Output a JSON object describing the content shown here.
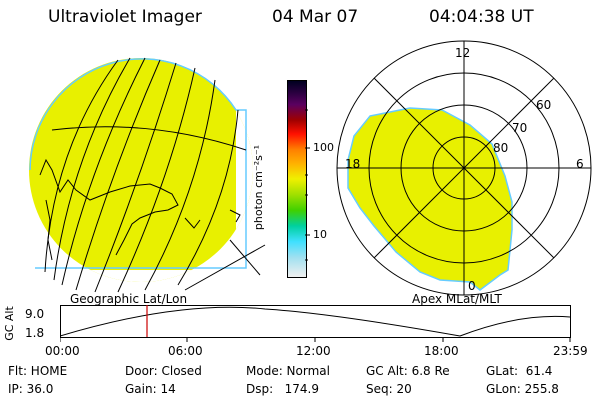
{
  "header": {
    "instrument": "Ultraviolet Imager",
    "date": "04 Mar 07",
    "time": "04:04:38 UT"
  },
  "left_panel": {
    "caption": "Geographic Lat/Lon"
  },
  "right_panel": {
    "caption": "Apex MLat/MLT",
    "mlt_labels": {
      "top": "12",
      "left": "18",
      "right": "6",
      "bottom": "0"
    },
    "lat_rings": [
      "60",
      "70",
      "80"
    ]
  },
  "colorbar": {
    "unit": "photon cm⁻²s⁻¹",
    "ticks": [
      "100",
      "10"
    ]
  },
  "altitude_plot": {
    "ylabel": "GC Alt",
    "ytick_top": "9.0",
    "ytick_bottom": "1.8",
    "xticks": [
      "00:00",
      "06:00",
      "12:00",
      "18:00",
      "23:59"
    ]
  },
  "footer": {
    "row1": [
      "Flt: HOME",
      "Door: Closed",
      "Mode: Normal",
      "GC Alt: 6.8 Re",
      "GLat:  61.4"
    ],
    "row2": [
      "IP: 36.0",
      "Gain: 14",
      "Dsp:   174.9",
      "Seq: 20",
      "GLon: 255.8"
    ]
  },
  "colors": {
    "image_fill": "#e8f000",
    "image_edge": "#66ccff",
    "marker": "#cc0000"
  }
}
